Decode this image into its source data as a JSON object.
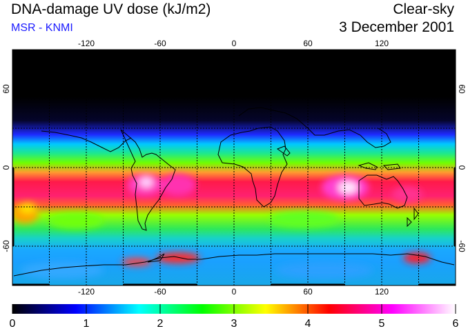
{
  "header": {
    "title": "DNA-damage UV dose (kJ/m2)",
    "source": "MSR - KNMI",
    "condition": "Clear-sky",
    "date": "3 December 2001"
  },
  "map": {
    "projection": "equirectangular",
    "lon_range": [
      -180,
      180
    ],
    "lat_range": [
      -90,
      90
    ],
    "lon_grid_deg": 30,
    "lat_grid_deg": 30,
    "lon_ticks": [
      {
        "value": -120,
        "label": "-120"
      },
      {
        "value": -60,
        "label": "-60"
      },
      {
        "value": 0,
        "label": "0"
      },
      {
        "value": 60,
        "label": "60"
      },
      {
        "value": 120,
        "label": "120"
      }
    ],
    "lat_ticks": [
      {
        "value": 60,
        "label": "60"
      },
      {
        "value": 0,
        "label": "0"
      },
      {
        "value": -60,
        "label": "-60"
      }
    ]
  },
  "colorbar": {
    "min": 0,
    "max": 6,
    "labels": [
      "0",
      "1",
      "2",
      "3",
      "4",
      "5",
      "6"
    ],
    "colors": [
      "#000000",
      "#0000ff",
      "#00ffff",
      "#00ff00",
      "#ffff00",
      "#ff0000",
      "#ff00ff",
      "#ffffff"
    ]
  }
}
